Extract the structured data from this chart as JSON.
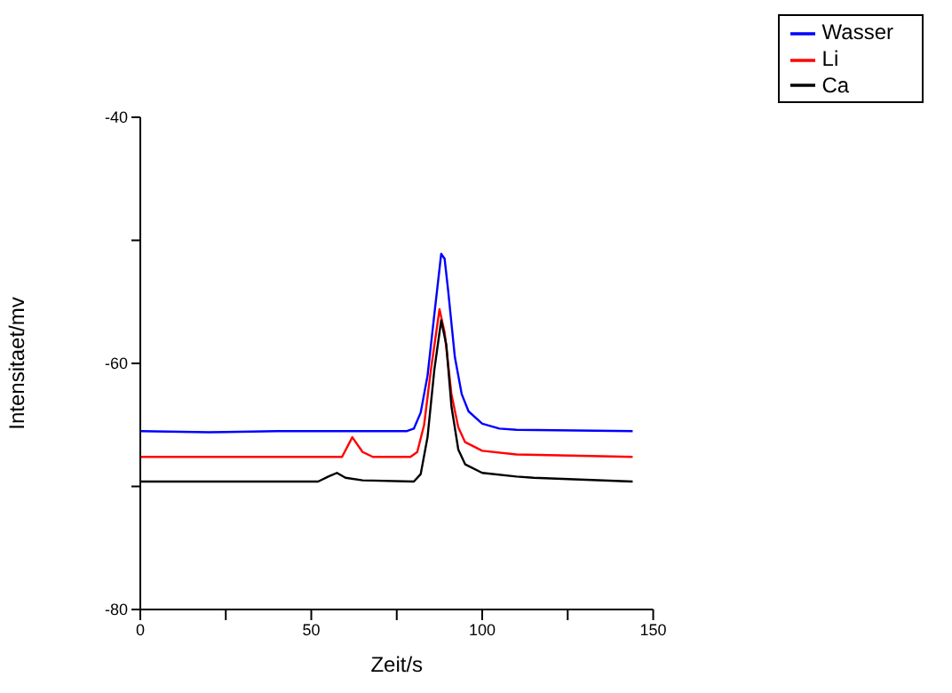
{
  "chart_data": {
    "type": "line",
    "xlabel": "Zeit/s",
    "ylabel": "Intensitaet/mv",
    "xlim": [
      0,
      150
    ],
    "xticks": [
      0,
      {
        "value": 25,
        "label": null
      },
      50,
      {
        "value": 75,
        "label": null
      },
      100,
      {
        "value": 125,
        "label": null
      },
      150
    ],
    "ylim": [
      -80,
      -40
    ],
    "yticks": [
      -80,
      {
        "value": -70,
        "label": null
      },
      -60,
      {
        "value": -50,
        "label": null
      },
      -40
    ],
    "grid": false,
    "legend": "top right",
    "marker": "none",
    "line_style": "solid",
    "series": [
      {
        "name": "Wasser",
        "color": "#0000ff",
        "x": [
          0,
          20,
          40,
          60,
          78,
          80,
          82,
          84,
          86,
          88,
          89,
          90,
          92,
          94,
          96,
          100,
          105,
          110,
          144
        ],
        "values": [
          -65.5,
          -65.6,
          -65.5,
          -65.5,
          -65.5,
          -65.3,
          -64,
          -61,
          -56,
          -51.1,
          -51.5,
          -54,
          -59.5,
          -62.5,
          -63.9,
          -64.9,
          -65.3,
          -65.4,
          -65.5
        ]
      },
      {
        "name": "Li",
        "color": "#ff0000",
        "x": [
          0,
          50,
          59,
          62,
          65,
          68,
          79,
          81,
          83,
          85,
          87.5,
          89,
          91,
          93,
          95,
          100,
          110,
          144
        ],
        "values": [
          -67.6,
          -67.6,
          -67.6,
          -66,
          -67.2,
          -67.6,
          -67.6,
          -67.2,
          -65,
          -60.5,
          -55.6,
          -57.5,
          -62.5,
          -65.2,
          -66.4,
          -67.1,
          -67.4,
          -67.6
        ]
      },
      {
        "name": "Ca",
        "color": "#000000",
        "x": [
          0,
          52,
          55,
          57.5,
          60,
          65,
          80,
          82,
          84,
          86,
          88,
          89.5,
          91,
          93,
          95,
          100,
          110,
          115,
          144
        ],
        "values": [
          -69.6,
          -69.6,
          -69.2,
          -68.9,
          -69.3,
          -69.5,
          -69.6,
          -69,
          -66,
          -60.5,
          -56.5,
          -58.5,
          -63.5,
          -67,
          -68.2,
          -68.9,
          -69.2,
          -69.3,
          -69.6
        ]
      }
    ]
  }
}
